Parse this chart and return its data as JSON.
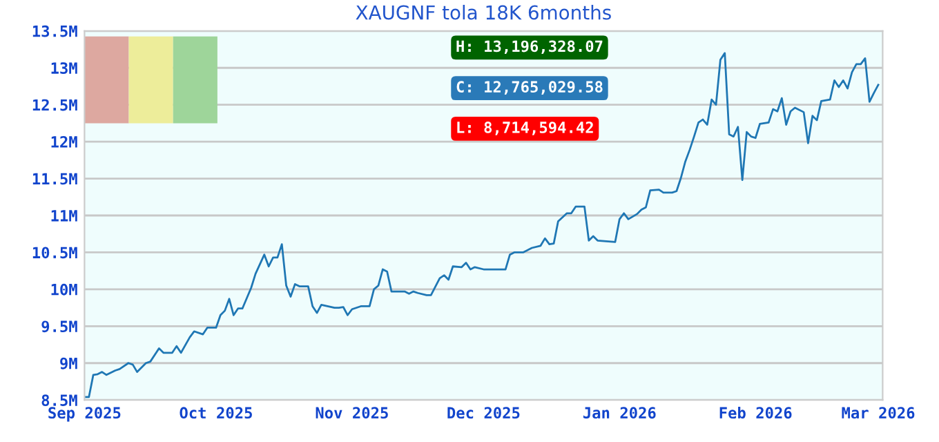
{
  "chart_data": {
    "type": "line",
    "title": "XAUGNF tola 18K 6months",
    "x": [
      "2025-09-01",
      "2025-09-02",
      "2025-09-03",
      "2025-09-04",
      "2025-09-05",
      "2025-09-06",
      "2025-09-08",
      "2025-09-09",
      "2025-09-11",
      "2025-09-12",
      "2025-09-13",
      "2025-09-15",
      "2025-09-16",
      "2025-09-18",
      "2025-09-19",
      "2025-09-21",
      "2025-09-22",
      "2025-09-23",
      "2025-09-25",
      "2025-09-26",
      "2025-09-28",
      "2025-09-29",
      "2025-10-01",
      "2025-10-02",
      "2025-10-03",
      "2025-10-04",
      "2025-10-05",
      "2025-10-06",
      "2025-10-07",
      "2025-10-09",
      "2025-10-10",
      "2025-10-12",
      "2025-10-13",
      "2025-10-14",
      "2025-10-15",
      "2025-10-16",
      "2025-10-17",
      "2025-10-18",
      "2025-10-19",
      "2025-10-20",
      "2025-10-22",
      "2025-10-23",
      "2025-10-24",
      "2025-10-25",
      "2025-10-28",
      "2025-10-29",
      "2025-10-30",
      "2025-10-31",
      "2025-11-01",
      "2025-11-03",
      "2025-11-05",
      "2025-11-06",
      "2025-11-07",
      "2025-11-08",
      "2025-11-09",
      "2025-11-10",
      "2025-11-13",
      "2025-11-14",
      "2025-11-15",
      "2025-11-16",
      "2025-11-18",
      "2025-11-19",
      "2025-11-21",
      "2025-11-22",
      "2025-11-23",
      "2025-11-24",
      "2025-11-26",
      "2025-11-27",
      "2025-11-28",
      "2025-11-29",
      "2025-12-01",
      "2025-12-06",
      "2025-12-07",
      "2025-12-08",
      "2025-12-10",
      "2025-12-12",
      "2025-12-14",
      "2025-12-15",
      "2025-12-16",
      "2025-12-17",
      "2025-12-18",
      "2025-12-20",
      "2025-12-21",
      "2025-12-22",
      "2025-12-24",
      "2025-12-25",
      "2025-12-26",
      "2025-12-27",
      "2025-12-31",
      "2026-01-01",
      "2026-01-02",
      "2026-01-03",
      "2026-01-05",
      "2026-01-06",
      "2026-01-07",
      "2026-01-08",
      "2026-01-10",
      "2026-01-11",
      "2026-01-13",
      "2026-01-14",
      "2026-01-15",
      "2026-01-16",
      "2026-01-17",
      "2026-01-18",
      "2026-01-19",
      "2026-01-20",
      "2026-01-21",
      "2026-01-22",
      "2026-01-23",
      "2026-01-24",
      "2026-01-25",
      "2026-01-26",
      "2026-01-27",
      "2026-01-28",
      "2026-01-29",
      "2026-01-30",
      "2026-01-31",
      "2026-02-01",
      "2026-02-02",
      "2026-02-04",
      "2026-02-05",
      "2026-02-06",
      "2026-02-07",
      "2026-02-08",
      "2026-02-09",
      "2026-02-10",
      "2026-02-12",
      "2026-02-13",
      "2026-02-14",
      "2026-02-15",
      "2026-02-16",
      "2026-02-18",
      "2026-02-19",
      "2026-02-20",
      "2026-02-21",
      "2026-02-22",
      "2026-02-23",
      "2026-02-24",
      "2026-02-25",
      "2026-02-26",
      "2026-02-27",
      "2026-02-28",
      "2026-03-01"
    ],
    "series": [
      {
        "color": "#1f77b4",
        "values": [
          8.54,
          8.54,
          8.84,
          8.85,
          8.88,
          8.84,
          8.9,
          8.92,
          9.0,
          8.98,
          8.88,
          9.0,
          9.02,
          9.2,
          9.14,
          9.14,
          9.23,
          9.14,
          9.35,
          9.43,
          9.39,
          9.48,
          9.48,
          9.65,
          9.71,
          9.87,
          9.65,
          9.74,
          9.74,
          10.02,
          10.21,
          10.47,
          10.31,
          10.43,
          10.43,
          10.61,
          10.05,
          9.9,
          10.07,
          10.04,
          10.04,
          9.77,
          9.68,
          9.79,
          9.75,
          9.75,
          9.76,
          9.65,
          9.73,
          9.77,
          9.77,
          10.0,
          10.05,
          10.27,
          10.24,
          9.97,
          9.97,
          9.94,
          9.97,
          9.95,
          9.92,
          9.92,
          10.15,
          10.19,
          10.13,
          10.31,
          10.3,
          10.36,
          10.27,
          10.3,
          10.27,
          10.27,
          10.47,
          10.5,
          10.5,
          10.56,
          10.59,
          10.69,
          10.61,
          10.62,
          10.92,
          11.03,
          11.03,
          11.12,
          11.12,
          10.66,
          10.72,
          10.66,
          10.64,
          10.95,
          11.03,
          10.95,
          11.02,
          11.08,
          11.11,
          11.34,
          11.35,
          11.31,
          11.31,
          11.33,
          11.51,
          11.73,
          11.89,
          12.07,
          12.26,
          12.3,
          12.23,
          12.57,
          12.5,
          13.11,
          13.2,
          12.1,
          12.07,
          12.2,
          11.48,
          12.13,
          12.07,
          12.05,
          12.24,
          12.26,
          12.44,
          12.41,
          12.59,
          12.23,
          12.41,
          12.46,
          12.4,
          11.98,
          12.35,
          12.29,
          12.55,
          12.57,
          12.83,
          12.74,
          12.83,
          12.72,
          12.94,
          13.05,
          13.05,
          13.13,
          12.54,
          12.66,
          12.77
        ]
      }
    ],
    "xlim": [
      "2025-09-01",
      "2026-03-02"
    ],
    "xticks": [
      {
        "value": "2025-09-01",
        "label": "Sep 2025"
      },
      {
        "value": "2025-10-01",
        "label": "Oct 2025"
      },
      {
        "value": "2025-11-01",
        "label": "Nov 2025"
      },
      {
        "value": "2025-12-01",
        "label": "Dec 2025"
      },
      {
        "value": "2026-01-01",
        "label": "Jan 2026"
      },
      {
        "value": "2026-02-01",
        "label": "Feb 2026"
      },
      {
        "value": "2026-03-01",
        "label": "Mar 2026"
      }
    ],
    "ylim": [
      8.5,
      13.5
    ],
    "yticks": [
      {
        "value": 8.5,
        "label": "8.5M"
      },
      {
        "value": 9,
        "label": "9M"
      },
      {
        "value": 9.5,
        "label": "9.5M"
      },
      {
        "value": 10,
        "label": "10M"
      },
      {
        "value": 10.5,
        "label": "10.5M"
      },
      {
        "value": 11,
        "label": "11M"
      },
      {
        "value": 11.5,
        "label": "11.5M"
      },
      {
        "value": 12,
        "label": "12M"
      },
      {
        "value": 12.5,
        "label": "12.5M"
      },
      {
        "value": 13,
        "label": "13M"
      },
      {
        "value": 13.5,
        "label": "13.5M"
      }
    ],
    "grid": "y",
    "annotations": [
      "H: 13,196,328.07",
      "C: 12,765,029.58",
      "L: 8,714,594.42"
    ]
  }
}
